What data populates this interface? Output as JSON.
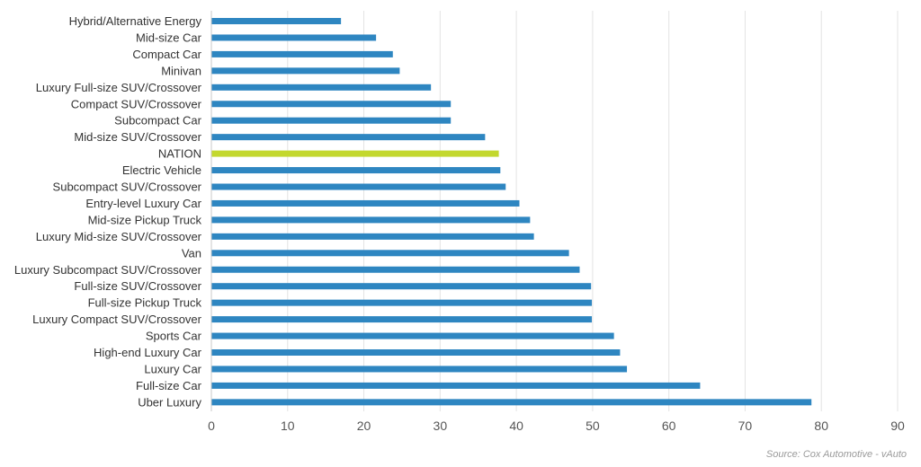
{
  "chart_data": {
    "type": "bar",
    "orientation": "horizontal",
    "categories": [
      "Hybrid/Alternative Energy",
      "Mid-size Car",
      "Compact Car",
      "Minivan",
      "Luxury Full-size SUV/Crossover",
      "Compact SUV/Crossover",
      "Subcompact Car",
      "Mid-size SUV/Crossover",
      "NATION",
      "Electric Vehicle",
      "Subcompact SUV/Crossover",
      "Entry-level Luxury Car",
      "Mid-size Pickup Truck",
      "Luxury Mid-size SUV/Crossover",
      "Van",
      "Luxury Subcompact SUV/Crossover",
      "Full-size SUV/Crossover",
      "Full-size Pickup Truck",
      "Luxury Compact SUV/Crossover",
      "Sports Car",
      "High-end Luxury Car",
      "Luxury Car",
      "Full-size Car",
      "Uber Luxury"
    ],
    "values": [
      17,
      21.6,
      23.8,
      24.7,
      28.8,
      31.4,
      31.4,
      35.9,
      37.7,
      37.9,
      38.6,
      40.4,
      41.8,
      42.3,
      46.9,
      48.3,
      49.8,
      49.9,
      49.9,
      52.8,
      53.6,
      54.5,
      64.1,
      78.7
    ],
    "highlight": "NATION",
    "xlim": [
      0,
      90
    ],
    "xticks": [
      0,
      10,
      20,
      30,
      40,
      50,
      60,
      70,
      80,
      90
    ],
    "grid": "vertical",
    "title": "",
    "xlabel": "",
    "ylabel": ""
  },
  "colors": {
    "bar": "#2e86c1",
    "highlight": "#c3d82e",
    "grid": "#e3e3e3",
    "axis": "#c8c8c8"
  },
  "source_note": "Source: Cox Automotive - vAuto"
}
